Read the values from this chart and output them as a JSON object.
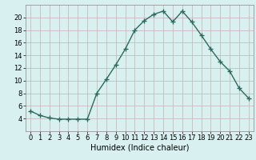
{
  "x": [
    0,
    1,
    2,
    3,
    4,
    5,
    6,
    7,
    8,
    9,
    10,
    11,
    12,
    13,
    14,
    15,
    16,
    17,
    18,
    19,
    20,
    21,
    22,
    23
  ],
  "y": [
    5.2,
    4.5,
    4.1,
    3.9,
    3.9,
    3.9,
    3.9,
    8.0,
    10.2,
    12.5,
    15.0,
    18.0,
    19.5,
    20.5,
    21.0,
    19.3,
    21.0,
    19.3,
    17.2,
    15.0,
    13.0,
    11.5,
    8.8,
    7.2
  ],
  "line_color": "#2e6b5e",
  "marker": "+",
  "markersize": 4,
  "bg_color": "#d8f0f0",
  "grid_color_h": "#c8b0b0",
  "grid_color_v": "#c8b0b0",
  "xlabel": "Humidex (Indice chaleur)",
  "xlim": [
    -0.5,
    23.5
  ],
  "ylim": [
    2,
    22
  ],
  "yticks": [
    4,
    6,
    8,
    10,
    12,
    14,
    16,
    18,
    20
  ],
  "xticks": [
    0,
    1,
    2,
    3,
    4,
    5,
    6,
    7,
    8,
    9,
    10,
    11,
    12,
    13,
    14,
    15,
    16,
    17,
    18,
    19,
    20,
    21,
    22,
    23
  ],
  "xtick_labels": [
    "0",
    "1",
    "2",
    "3",
    "4",
    "5",
    "6",
    "7",
    "8",
    "9",
    "10",
    "11",
    "12",
    "13",
    "14",
    "15",
    "16",
    "17",
    "18",
    "19",
    "20",
    "21",
    "22",
    "23"
  ],
  "xlabel_fontsize": 7,
  "tick_fontsize": 6,
  "linewidth": 1.0
}
